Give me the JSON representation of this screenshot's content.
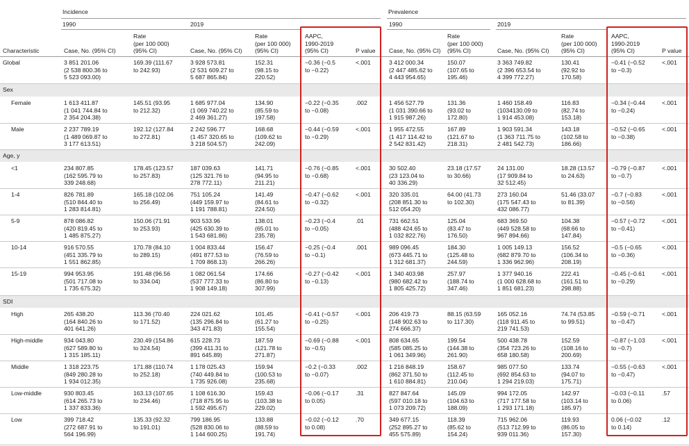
{
  "header": {
    "incidence": "Incidence",
    "prevalence": "Prevalence",
    "y1990": "1990",
    "y2019": "2019",
    "characteristic": "Characteristic",
    "case_no": "Case, No. (95% CI)",
    "rate": "Rate\n(per 100 000)\n(95% CI)",
    "aapc": "AAPC,\n1990-2019\n(95% CI)",
    "pvalue": "P value"
  },
  "sections": {
    "sex": "Sex",
    "age": "Age, y",
    "sdi": "SDI"
  },
  "rows": [
    {
      "label": "Global",
      "c": [
        "3 851 201.06\n(2 538 800.36 to\n5 523 093.00)",
        "169.39 (111.67\nto 242.93)",
        "3 928 573.81\n(2 531 609.27 to\n5 687 865.84)",
        "152.31\n(98.15 to\n220.52)",
        "−0.36 (−0.5\nto −0.22)",
        "<.001",
        "3 412 000.34\n(2 447 485.62 to\n4 443 954.65)",
        "150.07\n(107.65 to\n195.46)",
        "3 363 749.82\n(2 396 653.54 to\n4 399 772.27)",
        "130.41\n(92.92 to\n170.58)",
        "−0.41 (−0.52\nto −0.3)",
        "<.001"
      ]
    },
    {
      "label": "Female",
      "c": [
        "1 613 411.87\n(1 041 744.84 to\n2 354 204.38)",
        "145.51 (93.95\nto 212.32)",
        "1 685 977.04\n(1 069 740.22 to\n2 469 361.27)",
        "134.90\n(85.59 to\n197.58)",
        "−0.22 (−0.35\nto −0.08)",
        ".002",
        "1 456 527.79\n(1 031 390.66 to\n1 915 987.26)",
        "131.36\n(93.02 to\n172.80)",
        "1 460 158.49\n(1034130.09 to\n1 914 453.08)",
        "116.83\n(82.74 to\n153.18)",
        "−0.34 (−0.44\nto −0.24)",
        "<.001"
      ]
    },
    {
      "label": "Male",
      "c": [
        "2 237 789.19\n(1 489 069.87 to\n3 177 613.51)",
        "192.12 (127.84\nto 272.81)",
        "2 242 596.77\n(1 457 320.65 to\n3 218 504.57)",
        "168.68\n(109.62 to\n242.09)",
        "−0.44 (−0.59\nto −0.29)",
        "<.001",
        "1 955 472.55\n(1 417 114.42 to\n2 542 831.42)",
        "167.89\n(121.67 to\n218.31)",
        "1 903 591.34\n(1 363 711.75 to\n2 481 542.73)",
        "143.18\n(102.58 to\n186.66)",
        "−0.52 (−0.65\nto −0.38)",
        "<.001"
      ]
    },
    {
      "label": "<1",
      "c": [
        "234 807.85\n(162 595.79 to\n339 248.68)",
        "178.45 (123.57\nto 257.83)",
        "187 039.63\n(125 321.76 to\n278 772.11)",
        "141.71\n(94.95 to\n211.21)",
        "−0.76 (−0.85\nto −0.68)",
        "<.001",
        "30 502.40\n(23 123.04 to\n40 336.29)",
        "23.18 (17.57\nto 30.66)",
        "24 131.00\n(17 909.84 to\n32 512.45)",
        "18.28 (13.57\nto 24.63)",
        "−0.79 (−0.87\nto −0.7)",
        "<.001"
      ]
    },
    {
      "label": "1-4",
      "c": [
        "826 781.89\n(510 844.40 to\n1 283 814.81)",
        "165.18 (102.06\nto 256.49)",
        "751 105.24\n(449 159.97 to\n1 191 788.81)",
        "141.49\n(84.61 to\n224.50)",
        "−0.47 (−0.62\nto −0.32)",
        "<.001",
        "320 335.01\n(208 851.30 to\n512 054.20)",
        "64.00 (41.73\nto 102.30)",
        "273 160.04\n(175 547.43 to\n432 086.77)",
        "51.46 (33.07\nto 81.39)",
        "−0.7 (−0.83\nto −0.56)",
        "<.001"
      ]
    },
    {
      "label": "5-9",
      "c": [
        "878 086.82\n(420 819.45 to\n1 485 875.27)",
        "150.06 (71.91\nto 253.93)",
        "903 533.96\n(425 630.39 to\n1 543 681.86)",
        "138.01\n(65.01 to\n235.78)",
        "−0.23 (−0.4\nto −0.05)",
        ".01",
        "731 662.51\n(488 424.65 to\n1 032 822.76)",
        "125.04\n(83.47 to\n176.50)",
        "683 369.50\n(449 528.58 to\n967 894.66)",
        "104.38\n(68.66 to\n147.84)",
        "−0.57 (−0.72\nto −0.41)",
        "<.001"
      ]
    },
    {
      "label": "10-14",
      "c": [
        "916 570.55\n(451 335.79 to\n1 551 862.85)",
        "170.78 (84.10\nto 289.15)",
        "1 004 833.44\n(491 877.53 to\n1 709 868.13)",
        "156.47\n(76.59 to\n266.26)",
        "−0.25 (−0.4\nto −0.1)",
        ".001",
        "989 096.45\n(673 445.71 to\n1 312 681.37)",
        "184.30\n(125.48 to\n244.59)",
        "1 005 149.13\n(682 879.70 to\n1 336 962.96)",
        "156.52\n(106.34 to\n208.19)",
        "−0.5 (−0.65\nto −0.36)",
        "<.001"
      ]
    },
    {
      "label": "15-19",
      "c": [
        "994 953.95\n(501 717.08 to\n1 735 675.32)",
        "191.48 (96.56\nto 334.04)",
        "1 082 061.54\n(537 777.33 to\n1 908 149.18)",
        "174.66\n(86.80 to\n307.99)",
        "−0.27 (−0.42\nto −0.13)",
        "<.001",
        "1 340 403.98\n(980 682.42 to\n1 805 425.72)",
        "257.97\n(188.74 to\n347.46)",
        "1 377 940.16\n(1 000 628.68 to\n1 851 681.23)",
        "222.41\n(161.51 to\n298.88)",
        "−0.45 (−0.61\nto −0.29)",
        "<.001"
      ]
    },
    {
      "label": "High",
      "c": [
        "265 438.20\n(164 840.26 to\n401 641.26)",
        "113.36 (70.40\nto 171.52)",
        "224 021.62\n(135 296.84 to\n343 471.83)",
        "101.45\n(61.27 to\n155.54)",
        "−0.41 (−0.57\nto −0.25)",
        "<.001",
        "206 419.73\n(148 902.63 to\n274 666.37)",
        "88.15 (63.59\nto 117.30)",
        "165 052.16\n(118 911.45 to\n219 741.53)",
        "74.74 (53.85\nto 99.51)",
        "−0.59 (−0.71\nto −0.47)",
        "<.001"
      ]
    },
    {
      "label": "High-middle",
      "c": [
        "934 043.80\n(627 589.80 to\n1 315 185.11)",
        "230.49 (154.86\nto 324.54)",
        "615 228.73\n(399 411.31 to\n891 645.89)",
        "187.59\n(121.78 to\n271.87)",
        "−0.69 (−0.88\nto −0.5)",
        "<.001",
        "808 634.65\n(585 085.25 to\n1 061 349.96)",
        "199.54\n(144.38 to\n261.90)",
        "500 438.78\n(354 723.26 to\n658 180.58)",
        "152.59\n(108.16 to\n200.69)",
        "−0.87 (−1.03\nto −0.7)",
        "<.001"
      ]
    },
    {
      "label": "Middle",
      "c": [
        "1 318 223.75\n(849 280.28 to\n1 934 012.35)",
        "171.88 (110.74\nto 252.18)",
        "1 178 025.43\n(740 449.84 to\n1 735 926.08)",
        "159.94\n(100.53 to\n235.68)",
        "−0.2 (−0.33\nto −0.07)",
        ".002",
        "1 216 848.19\n(862 371.50 to\n1 610 884.81)",
        "158.67\n(112.45 to\n210.04)",
        "985 077.50\n(692 854.63 to\n1 294 219.03)",
        "133.74\n(94.07 to\n175.71)",
        "−0.55 (−0.63\nto −0.47)",
        "<.001"
      ]
    },
    {
      "label": "Low-middle",
      "c": [
        "930 803.45\n(614 265.73 to\n1 337 833.36)",
        "163.13 (107.65\nto 234.46)",
        "1 108 616.30\n(718 875.95 to\n1 592 495.67)",
        "159.43\n(103.38 to\n229.02)",
        "−0.06 (−0.17\nto 0.05)",
        ".31",
        "827 847.64\n(597 010.18 to\n1 073 209.72)",
        "145.09\n(104.63 to\n188.09)",
        "994 172.05\n(717 177.58 to\n1 293 171.18)",
        "142.97\n(103.14 to\n185.97)",
        "−0.03 (−0.11\nto 0.06)",
        ".57"
      ]
    },
    {
      "label": "Low",
      "c": [
        "399 718.42\n(272 687.91 to\n564 196.99)",
        "135.33 (92.32\nto 191.01)",
        "799 186.95\n(528 830.06 to\n1 144 600.25)",
        "133.88\n(88.59 to\n191.74)",
        "−0.02 (−0.12\nto 0.08)",
        ".70",
        "349 677.15\n(252 895.27 to\n455 575.89)",
        "118.39\n(85.62 to\n154.24)",
        "715 962.06\n(513 712.99 to\n939 011.36)",
        "119.93\n(86.05 to\n157.30)",
        "0.06 (−0.02\nto 0.14)",
        ".12"
      ]
    }
  ]
}
